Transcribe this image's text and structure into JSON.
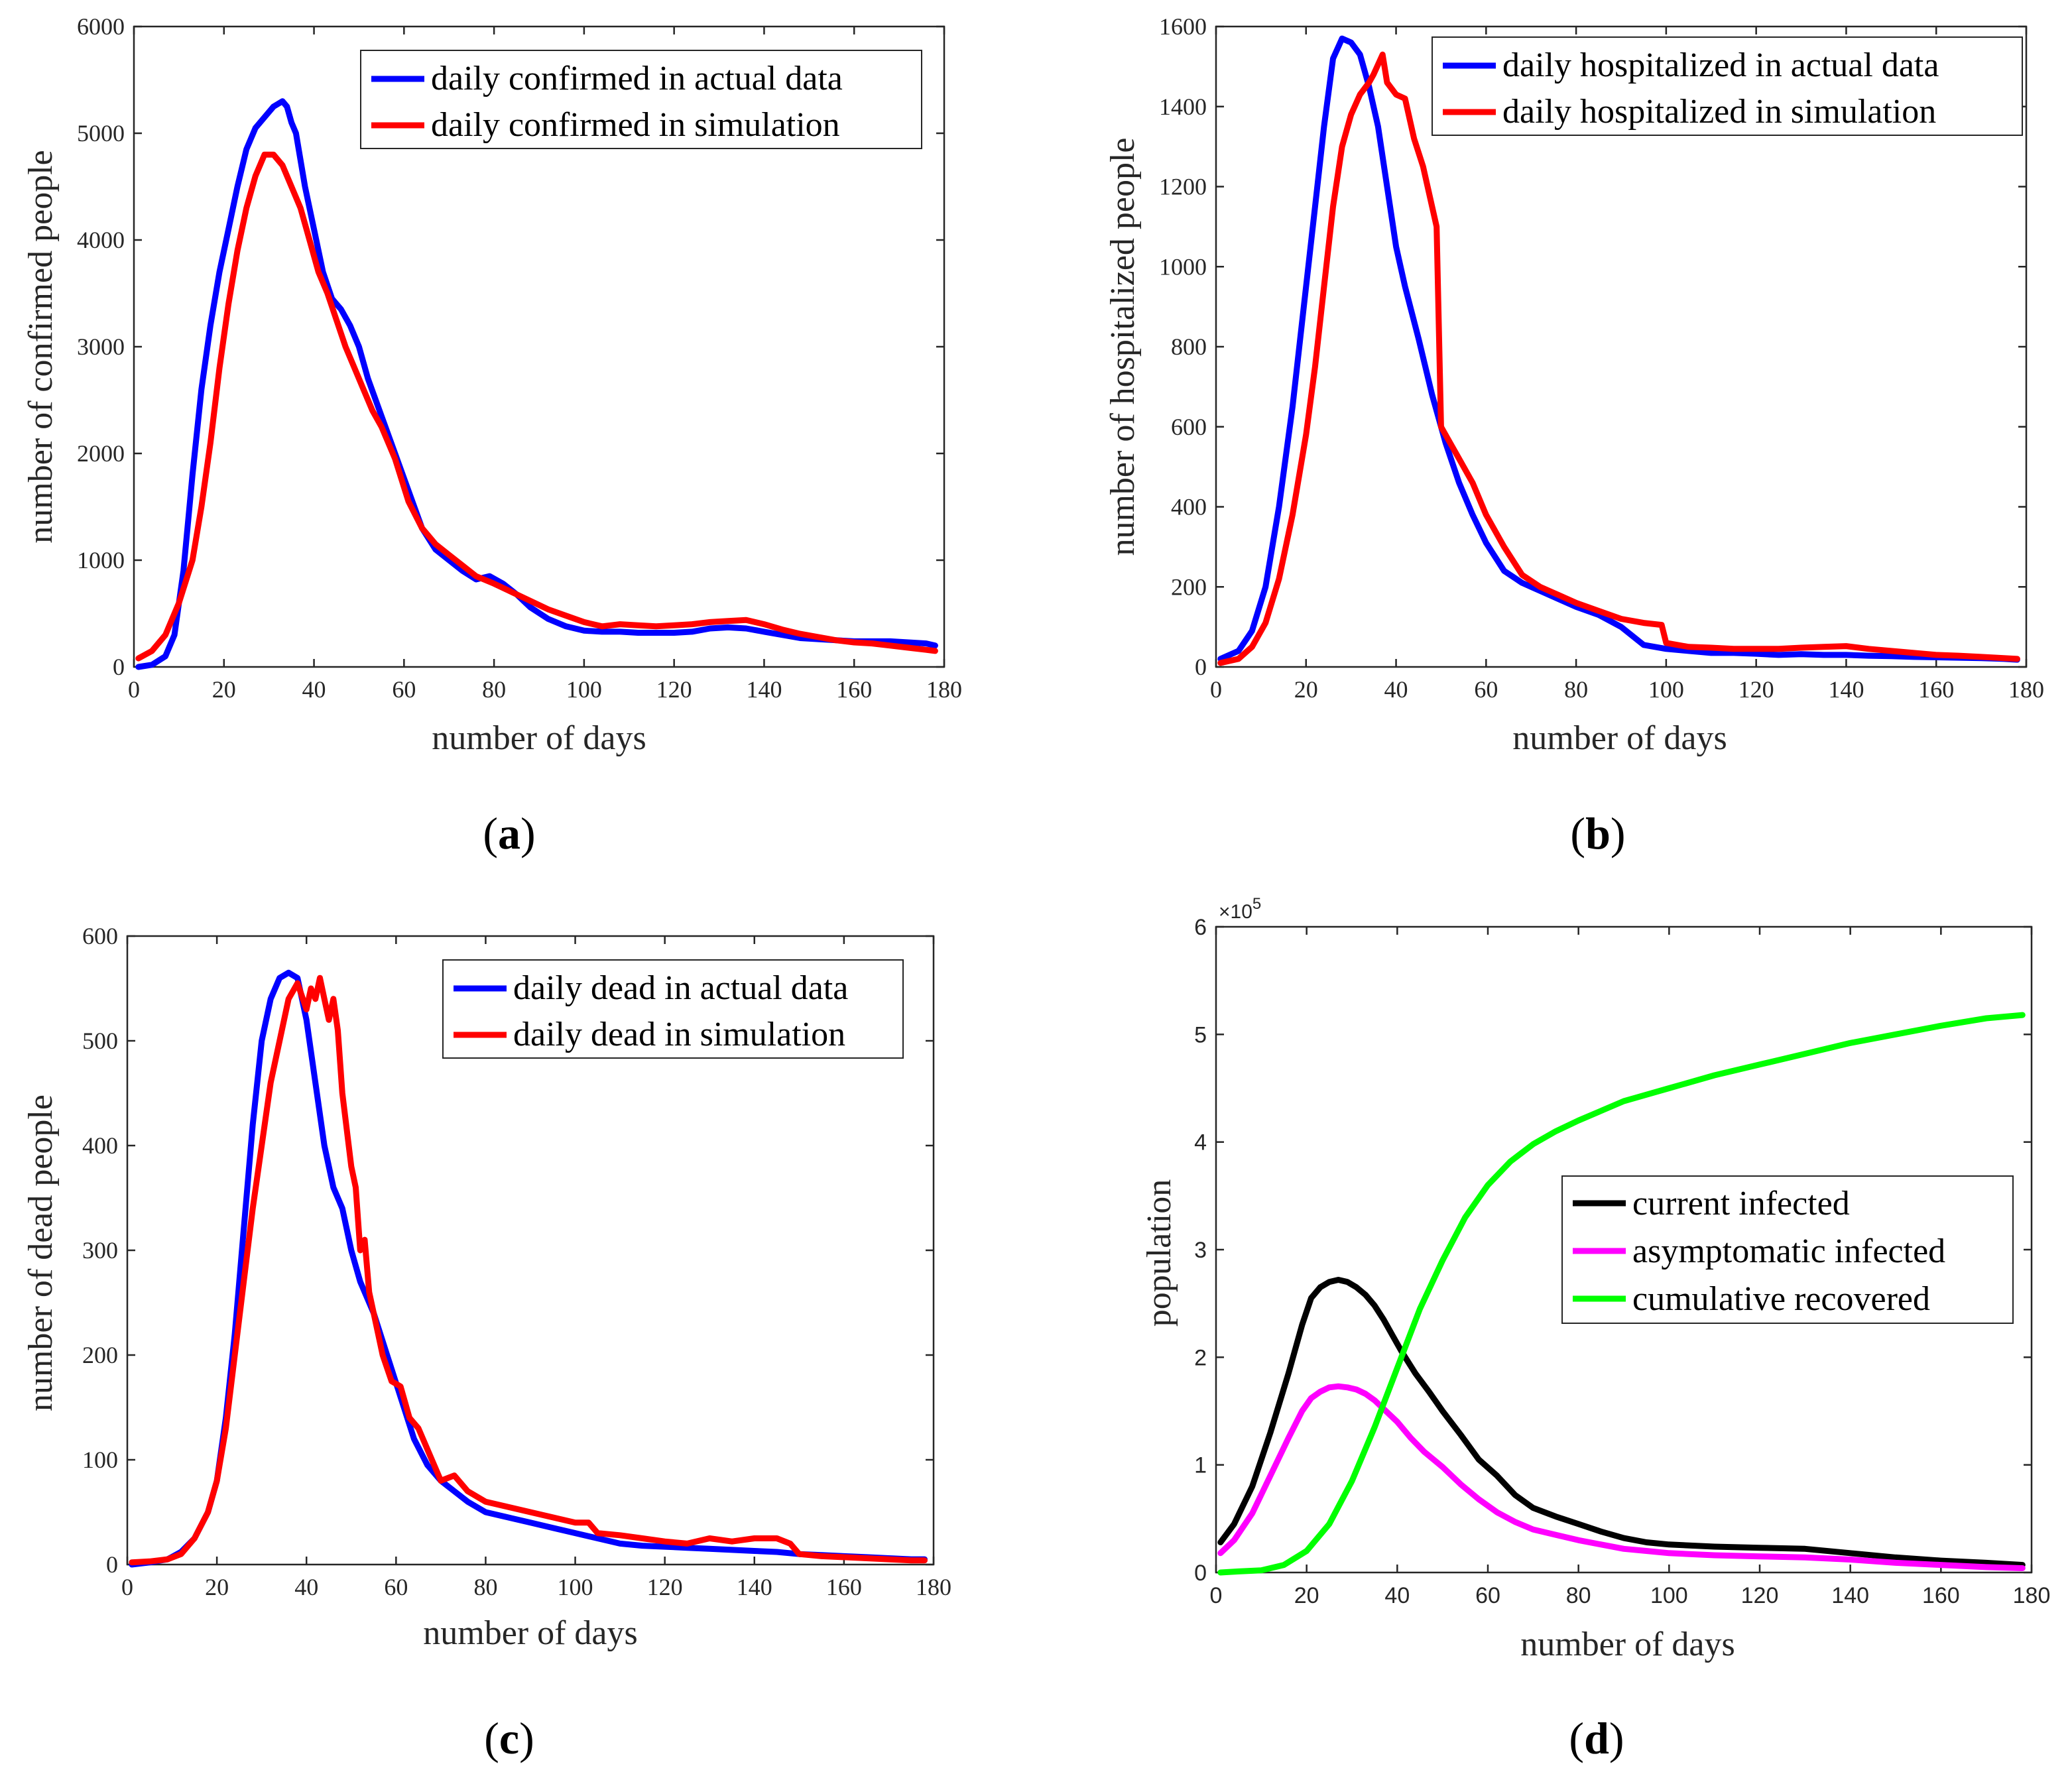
{
  "chart_data": [
    {
      "type": "line",
      "panel_label": "a",
      "xlabel": "number of days",
      "ylabel": "number of confirmed people",
      "xlim": [
        0,
        180
      ],
      "ylim": [
        0,
        6000
      ],
      "xticks": [
        0,
        20,
        40,
        60,
        80,
        100,
        120,
        140,
        160,
        180
      ],
      "yticks": [
        0,
        1000,
        2000,
        3000,
        4000,
        5000,
        6000
      ],
      "legend_position": "top-right",
      "series": [
        {
          "name": "daily confirmed in actual data",
          "color": "#0000ff",
          "x": [
            1,
            4,
            7,
            9,
            11,
            13,
            15,
            17,
            19,
            21,
            23,
            25,
            27,
            29,
            31,
            33,
            34,
            35,
            36,
            37,
            38,
            40,
            42,
            44,
            46,
            48,
            50,
            52,
            55,
            58,
            61,
            64,
            67,
            70,
            73,
            76,
            79,
            82,
            85,
            88,
            92,
            96,
            100,
            104,
            108,
            112,
            116,
            120,
            124,
            128,
            132,
            136,
            140,
            144,
            148,
            152,
            156,
            160,
            164,
            168,
            172,
            176,
            178
          ],
          "values": [
            0,
            20,
            100,
            300,
            900,
            1800,
            2600,
            3200,
            3700,
            4100,
            4500,
            4850,
            5050,
            5150,
            5250,
            5300,
            5250,
            5100,
            5000,
            4750,
            4500,
            4100,
            3700,
            3450,
            3350,
            3200,
            3000,
            2700,
            2350,
            2000,
            1650,
            1300,
            1100,
            1000,
            900,
            820,
            850,
            780,
            680,
            560,
            450,
            380,
            340,
            330,
            330,
            320,
            320,
            320,
            330,
            360,
            370,
            360,
            330,
            300,
            270,
            260,
            250,
            240,
            240,
            240,
            230,
            220,
            200
          ]
        },
        {
          "name": "daily confirmed in simulation",
          "color": "#ff0000",
          "x": [
            1,
            4,
            7,
            10,
            13,
            15,
            17,
            19,
            21,
            23,
            25,
            27,
            29,
            31,
            33,
            35,
            37,
            39,
            41,
            43,
            45,
            47,
            49,
            51,
            53,
            55,
            58,
            61,
            64,
            67,
            70,
            73,
            76,
            80,
            84,
            88,
            92,
            96,
            100,
            104,
            108,
            112,
            116,
            120,
            124,
            128,
            132,
            136,
            140,
            144,
            148,
            152,
            156,
            160,
            164,
            168,
            172,
            176,
            178
          ],
          "values": [
            80,
            150,
            300,
            600,
            1000,
            1500,
            2100,
            2800,
            3400,
            3900,
            4300,
            4600,
            4800,
            4800,
            4700,
            4500,
            4300,
            4000,
            3700,
            3500,
            3250,
            3000,
            2800,
            2600,
            2400,
            2250,
            1950,
            1550,
            1300,
            1150,
            1050,
            950,
            850,
            780,
            700,
            620,
            540,
            480,
            420,
            380,
            400,
            390,
            380,
            390,
            400,
            420,
            430,
            440,
            400,
            350,
            310,
            280,
            250,
            230,
            220,
            200,
            180,
            160,
            150
          ]
        }
      ]
    },
    {
      "type": "line",
      "panel_label": "b",
      "xlabel": "number of days",
      "ylabel": "number of hospitalized people",
      "xlim": [
        0,
        180
      ],
      "ylim": [
        0,
        1600
      ],
      "xticks": [
        0,
        20,
        40,
        60,
        80,
        100,
        120,
        140,
        160,
        180
      ],
      "yticks": [
        0,
        200,
        400,
        600,
        800,
        1000,
        1200,
        1400,
        1600
      ],
      "legend_position": "top-right",
      "series": [
        {
          "name": "daily hospitalized in actual data",
          "color": "#0000ff",
          "x": [
            1,
            5,
            8,
            11,
            14,
            17,
            20,
            22,
            24,
            26,
            28,
            30,
            32,
            34,
            36,
            38,
            40,
            42,
            45,
            48,
            51,
            54,
            57,
            60,
            64,
            68,
            72,
            76,
            80,
            85,
            90,
            95,
            100,
            105,
            110,
            115,
            120,
            125,
            130,
            135,
            140,
            145,
            150,
            155,
            160,
            165,
            170,
            175,
            178
          ],
          "values": [
            20,
            40,
            90,
            200,
            400,
            650,
            950,
            1150,
            1350,
            1520,
            1570,
            1560,
            1530,
            1450,
            1350,
            1200,
            1050,
            950,
            820,
            680,
            560,
            460,
            380,
            310,
            240,
            210,
            190,
            170,
            150,
            130,
            100,
            55,
            45,
            40,
            35,
            35,
            33,
            30,
            32,
            30,
            30,
            28,
            27,
            25,
            24,
            23,
            22,
            20,
            18
          ]
        },
        {
          "name": "daily hospitalized in simulation",
          "color": "#ff0000",
          "x": [
            1,
            5,
            8,
            11,
            14,
            17,
            20,
            22,
            24,
            26,
            28,
            30,
            32,
            34,
            35,
            37,
            38,
            40,
            42,
            44,
            46,
            48,
            49,
            50,
            52,
            54,
            57,
            60,
            64,
            68,
            72,
            76,
            80,
            85,
            90,
            95,
            99,
            100,
            105,
            110,
            115,
            120,
            125,
            130,
            135,
            140,
            145,
            150,
            155,
            160,
            165,
            170,
            175,
            178
          ],
          "values": [
            10,
            20,
            50,
            110,
            220,
            380,
            580,
            750,
            950,
            1150,
            1300,
            1380,
            1430,
            1460,
            1480,
            1530,
            1460,
            1430,
            1420,
            1320,
            1250,
            1150,
            1100,
            600,
            560,
            520,
            460,
            380,
            300,
            230,
            200,
            180,
            160,
            140,
            120,
            110,
            105,
            60,
            50,
            48,
            45,
            45,
            45,
            48,
            50,
            52,
            45,
            40,
            35,
            30,
            28,
            25,
            22,
            20
          ]
        }
      ]
    },
    {
      "type": "line",
      "panel_label": "c",
      "xlabel": "number of days",
      "ylabel": "number of dead people",
      "xlim": [
        0,
        180
      ],
      "ylim": [
        0,
        600
      ],
      "xticks": [
        0,
        20,
        40,
        60,
        80,
        100,
        120,
        140,
        160,
        180
      ],
      "yticks": [
        0,
        100,
        200,
        300,
        400,
        500,
        600
      ],
      "legend_position": "top-right",
      "series": [
        {
          "name": "daily dead in actual data",
          "color": "#0000ff",
          "x": [
            1,
            5,
            9,
            12,
            15,
            18,
            20,
            22,
            24,
            26,
            28,
            30,
            32,
            34,
            36,
            38,
            40,
            42,
            44,
            46,
            48,
            50,
            52,
            55,
            58,
            61,
            64,
            67,
            70,
            73,
            76,
            80,
            85,
            90,
            95,
            100,
            105,
            110,
            115,
            120,
            125,
            130,
            135,
            140,
            145,
            150,
            155,
            160,
            165,
            170,
            175,
            178
          ],
          "values": [
            0,
            2,
            5,
            12,
            25,
            50,
            80,
            140,
            220,
            320,
            420,
            500,
            540,
            560,
            565,
            560,
            520,
            460,
            400,
            360,
            340,
            300,
            270,
            240,
            200,
            160,
            120,
            95,
            80,
            70,
            60,
            50,
            45,
            40,
            35,
            30,
            25,
            20,
            18,
            17,
            16,
            15,
            14,
            13,
            12,
            10,
            9,
            8,
            7,
            6,
            5,
            5
          ]
        },
        {
          "name": "daily dead in simulation",
          "color": "#ff0000",
          "x": [
            1,
            5,
            9,
            12,
            15,
            18,
            20,
            22,
            24,
            26,
            28,
            30,
            32,
            34,
            36,
            38,
            40,
            41,
            42,
            43,
            44,
            45,
            46,
            47,
            48,
            50,
            51,
            52,
            53,
            54,
            55,
            57,
            59,
            61,
            63,
            65,
            67,
            70,
            73,
            76,
            80,
            85,
            90,
            95,
            100,
            103,
            105,
            110,
            115,
            120,
            125,
            130,
            135,
            140,
            145,
            148,
            150,
            155,
            160,
            165,
            170,
            175,
            178
          ],
          "values": [
            2,
            3,
            5,
            10,
            25,
            50,
            80,
            130,
            200,
            270,
            340,
            400,
            460,
            500,
            540,
            555,
            530,
            550,
            540,
            560,
            540,
            520,
            540,
            510,
            450,
            380,
            360,
            300,
            310,
            260,
            240,
            200,
            175,
            170,
            140,
            130,
            110,
            80,
            85,
            70,
            60,
            55,
            50,
            45,
            40,
            40,
            30,
            28,
            25,
            22,
            20,
            25,
            22,
            25,
            25,
            20,
            10,
            8,
            7,
            6,
            5,
            4,
            4
          ]
        }
      ]
    },
    {
      "type": "line",
      "panel_label": "d",
      "xlabel": "number of days",
      "ylabel": "population",
      "exponent_label": "×10",
      "exponent_power": "5",
      "xlim": [
        0,
        180
      ],
      "ylim": [
        0,
        6
      ],
      "y_units": "×10^5",
      "xticks": [
        0,
        20,
        40,
        60,
        80,
        100,
        120,
        140,
        160,
        180
      ],
      "yticks": [
        0,
        1,
        2,
        3,
        4,
        5,
        6
      ],
      "legend_position": "center-right",
      "series": [
        {
          "name": "current infected",
          "color": "#000000",
          "x": [
            1,
            4,
            8,
            12,
            16,
            19,
            21,
            23,
            25,
            27,
            29,
            31,
            33,
            35,
            37,
            39,
            41,
            44,
            47,
            50,
            54,
            58,
            62,
            66,
            70,
            75,
            80,
            85,
            90,
            95,
            100,
            110,
            120,
            130,
            140,
            150,
            160,
            170,
            178
          ],
          "values": [
            0.28,
            0.45,
            0.8,
            1.3,
            1.85,
            2.3,
            2.55,
            2.65,
            2.7,
            2.72,
            2.7,
            2.65,
            2.58,
            2.48,
            2.35,
            2.2,
            2.05,
            1.85,
            1.68,
            1.5,
            1.28,
            1.05,
            0.9,
            0.72,
            0.6,
            0.52,
            0.45,
            0.38,
            0.32,
            0.28,
            0.26,
            0.24,
            0.23,
            0.22,
            0.18,
            0.14,
            0.11,
            0.09,
            0.07
          ]
        },
        {
          "name": "asymptomatic infected",
          "color": "#ff00ff",
          "x": [
            1,
            4,
            8,
            12,
            16,
            19,
            21,
            23,
            25,
            27,
            29,
            31,
            33,
            35,
            37,
            40,
            43,
            46,
            50,
            54,
            58,
            62,
            66,
            70,
            75,
            80,
            85,
            90,
            95,
            100,
            110,
            120,
            130,
            140,
            150,
            160,
            170,
            178
          ],
          "values": [
            0.18,
            0.3,
            0.55,
            0.9,
            1.25,
            1.5,
            1.62,
            1.68,
            1.72,
            1.73,
            1.72,
            1.7,
            1.66,
            1.6,
            1.52,
            1.4,
            1.25,
            1.12,
            0.98,
            0.82,
            0.68,
            0.56,
            0.47,
            0.4,
            0.35,
            0.3,
            0.26,
            0.22,
            0.2,
            0.18,
            0.16,
            0.15,
            0.14,
            0.12,
            0.09,
            0.07,
            0.05,
            0.04
          ]
        },
        {
          "name": "cumulative recovered",
          "color": "#00ff00",
          "x": [
            1,
            5,
            10,
            15,
            20,
            25,
            30,
            35,
            40,
            45,
            50,
            55,
            60,
            65,
            70,
            75,
            80,
            90,
            100,
            110,
            120,
            130,
            140,
            150,
            160,
            170,
            178
          ],
          "values": [
            0.0,
            0.01,
            0.02,
            0.07,
            0.2,
            0.45,
            0.85,
            1.35,
            1.9,
            2.45,
            2.9,
            3.3,
            3.6,
            3.82,
            3.98,
            4.1,
            4.2,
            4.38,
            4.5,
            4.62,
            4.72,
            4.82,
            4.92,
            5.0,
            5.08,
            5.15,
            5.18
          ]
        }
      ]
    }
  ]
}
